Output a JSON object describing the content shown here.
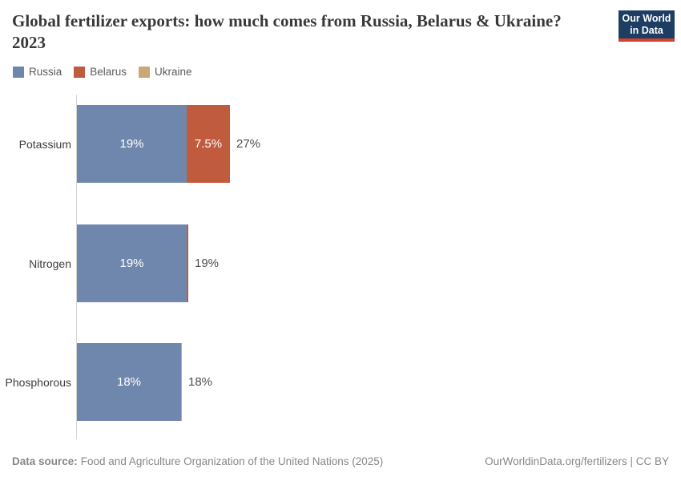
{
  "header": {
    "title": "Global fertilizer exports: how much comes from Russia, Belarus & Ukraine? 2023",
    "logo": {
      "line1": "Our World",
      "line2": "in Data"
    }
  },
  "colors": {
    "russia": "#7087ad",
    "belarus": "#c05b3e",
    "ukraine": "#c8a877",
    "logo_bg": "#1d3d63",
    "logo_stripe": "#d7402f",
    "axis": "#d4d4d4"
  },
  "legend": {
    "items": [
      {
        "label": "Russia",
        "color_key": "russia"
      },
      {
        "label": "Belarus",
        "color_key": "belarus"
      },
      {
        "label": "Ukraine",
        "color_key": "ukraine"
      }
    ]
  },
  "chart_data": {
    "type": "bar",
    "orientation": "horizontal",
    "stacked": true,
    "value_unit": "%",
    "categories": [
      "Potassium",
      "Nitrogen",
      "Phosphorous"
    ],
    "series": [
      {
        "name": "Russia",
        "values": [
          19,
          19,
          18
        ]
      },
      {
        "name": "Belarus",
        "values": [
          7.5,
          0.3,
          0
        ]
      },
      {
        "name": "Ukraine",
        "values": [
          0,
          0,
          0.15
        ]
      }
    ],
    "rows": [
      {
        "category": "Potassium",
        "segments": [
          {
            "series": "Russia",
            "value": 19,
            "label": "19%"
          },
          {
            "series": "Belarus",
            "value": 7.5,
            "label": "7.5%"
          }
        ],
        "total_label": "27%"
      },
      {
        "category": "Nitrogen",
        "segments": [
          {
            "series": "Russia",
            "value": 19,
            "label": "19%"
          },
          {
            "series": "Belarus",
            "value": 0.3,
            "label": ""
          }
        ],
        "total_label": "19%"
      },
      {
        "category": "Phosphorous",
        "segments": [
          {
            "series": "Russia",
            "value": 18,
            "label": "18%"
          },
          {
            "series": "Ukraine",
            "value": 0.15,
            "label": ""
          }
        ],
        "total_label": "18%"
      }
    ]
  },
  "footer": {
    "source_label": "Data source:",
    "source_text": "Food and Agriculture Organization of the United Nations (2025)",
    "link_text": "OurWorldinData.org/fertilizers | CC BY"
  }
}
